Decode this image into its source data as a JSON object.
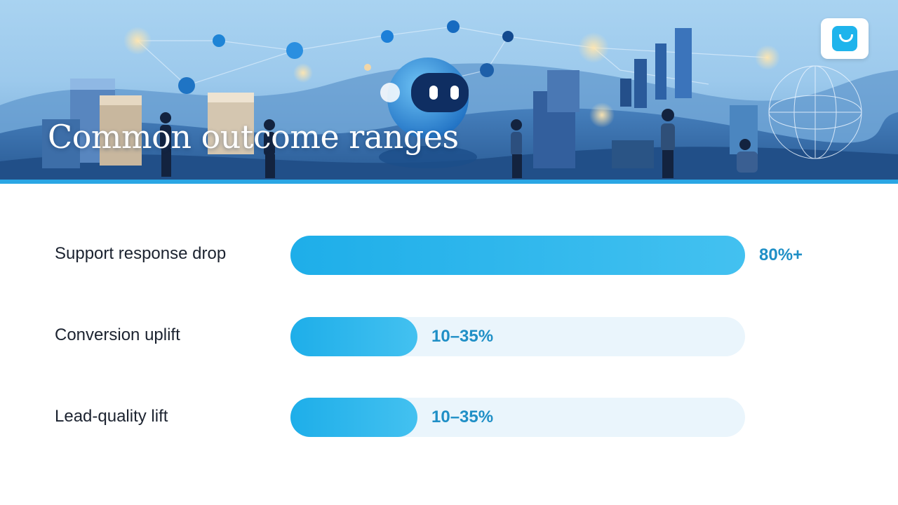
{
  "header": {
    "title": "Common outcome ranges"
  },
  "logo": {
    "icon": "smile-logo-icon",
    "color": "#1fb4ec"
  },
  "colors": {
    "accent": "#2aa6e4",
    "bar": "#1eaee9",
    "track": "#eaf5fc",
    "value_text": "#1f8fc6"
  },
  "chart_data": {
    "type": "bar",
    "orientation": "horizontal",
    "categories": [
      "Support response drop",
      "Conversion uplift",
      "Lead-quality lift"
    ],
    "value_labels": [
      "80%+",
      "10–35%",
      "10–35%"
    ],
    "fill_fraction": [
      1.0,
      0.28,
      0.28
    ]
  }
}
